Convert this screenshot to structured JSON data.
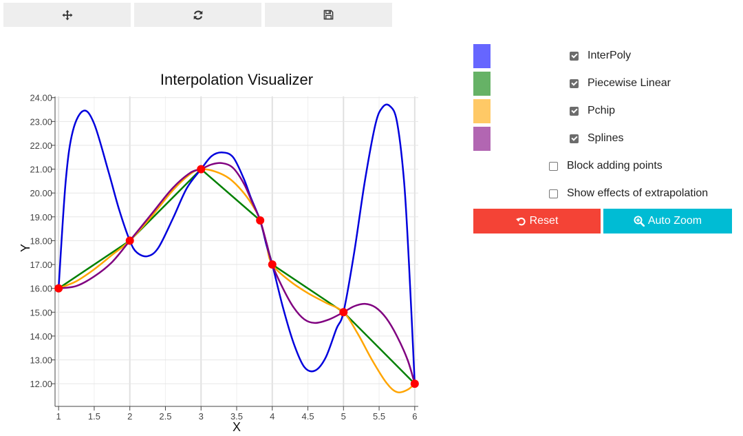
{
  "toolbar": {
    "buttons": [
      {
        "icon": "move-icon"
      },
      {
        "icon": "refresh-icon"
      },
      {
        "icon": "save-icon"
      }
    ]
  },
  "chart_data": {
    "type": "line",
    "title": "Interpolation Visualizer",
    "xlabel": "X",
    "ylabel": "Y",
    "xlim": [
      0.95,
      6.05
    ],
    "ylim": [
      11.05,
      24.05
    ],
    "x_ticks": [
      "1",
      "1.5",
      "2",
      "2.5",
      "3",
      "3.5",
      "4",
      "4.5",
      "5",
      "5.5",
      "6"
    ],
    "y_ticks": [
      "12.00",
      "13.00",
      "14.00",
      "15.00",
      "16.00",
      "17.00",
      "18.00",
      "19.00",
      "20.00",
      "21.00",
      "22.00",
      "23.00",
      "24.00"
    ],
    "grid": true,
    "points": [
      [
        1,
        16
      ],
      [
        2,
        18
      ],
      [
        3,
        21
      ],
      [
        3.83,
        18.85
      ],
      [
        4,
        17
      ],
      [
        5,
        15
      ],
      [
        6,
        12
      ]
    ],
    "series": [
      {
        "key": "interpoly",
        "color": "#0000dd",
        "x": [
          1,
          1.1,
          1.2,
          1.35,
          1.5,
          1.7,
          1.85,
          2,
          2.1,
          2.25,
          2.4,
          2.6,
          2.8,
          3,
          3.15,
          3.3,
          3.45,
          3.6,
          3.7,
          3.83,
          3.92,
          4,
          4.15,
          4.3,
          4.45,
          4.6,
          4.75,
          4.9,
          5,
          5.15,
          5.3,
          5.45,
          5.55,
          5.65,
          5.75,
          5.85,
          5.92,
          6
        ],
        "y": [
          16,
          20.5,
          22.6,
          23.45,
          22.9,
          20.9,
          19.3,
          18,
          17.5,
          17.35,
          17.7,
          18.9,
          20.2,
          21,
          21.55,
          21.7,
          21.5,
          20.6,
          19.8,
          18.85,
          17.8,
          17,
          15.2,
          13.7,
          12.7,
          12.55,
          13.1,
          14.3,
          15,
          17.5,
          20.5,
          22.9,
          23.6,
          23.65,
          23,
          20.5,
          17,
          12
        ]
      },
      {
        "key": "linear",
        "color": "#008000",
        "x": [
          1,
          2,
          3,
          3.83,
          4,
          5,
          6
        ],
        "y": [
          16,
          18,
          21,
          18.85,
          17,
          15,
          12
        ]
      },
      {
        "key": "pchip",
        "color": "#ffa500",
        "x": [
          1,
          1.25,
          1.5,
          1.75,
          2,
          2.3,
          2.6,
          2.85,
          3,
          3.2,
          3.4,
          3.6,
          3.75,
          3.83,
          3.92,
          4,
          4.25,
          4.5,
          4.75,
          5,
          5.2,
          5.4,
          5.6,
          5.75,
          5.9,
          6
        ],
        "y": [
          16,
          16.3,
          16.8,
          17.4,
          18,
          19,
          20.1,
          20.8,
          21,
          20.9,
          20.6,
          20,
          19.35,
          18.85,
          17.8,
          17,
          16.3,
          15.8,
          15.4,
          15,
          14.1,
          13,
          12.05,
          11.65,
          11.75,
          12
        ]
      },
      {
        "key": "splines",
        "color": "#800080",
        "x": [
          1,
          1.25,
          1.5,
          1.75,
          2,
          2.3,
          2.6,
          2.85,
          3,
          3.15,
          3.3,
          3.45,
          3.6,
          3.72,
          3.83,
          3.92,
          4,
          4.15,
          4.3,
          4.45,
          4.6,
          4.8,
          5,
          5.15,
          5.3,
          5.45,
          5.6,
          5.75,
          5.9,
          6
        ],
        "y": [
          16,
          16.1,
          16.5,
          17.1,
          18,
          19.1,
          20.2,
          20.85,
          21,
          21.2,
          21.25,
          21.05,
          20.4,
          19.6,
          18.85,
          17.9,
          17,
          16,
          15.2,
          14.7,
          14.55,
          14.7,
          15,
          15.25,
          15.35,
          15.2,
          14.75,
          14,
          13,
          12
        ]
      }
    ]
  },
  "legend": {
    "items": [
      {
        "key": "interpoly",
        "label": "InterPoly",
        "color": "#6666ff",
        "checked": true
      },
      {
        "key": "linear",
        "label": "Piecewise Linear",
        "color": "#66b266",
        "checked": true
      },
      {
        "key": "pchip",
        "label": "Pchip",
        "color": "#ffc966",
        "checked": true
      },
      {
        "key": "splines",
        "label": "Splines",
        "color": "#b266b2",
        "checked": true
      }
    ]
  },
  "options": {
    "block_adding": {
      "label": "Block adding points",
      "checked": false
    },
    "extrapolation": {
      "label": "Show effects of extrapolation",
      "checked": false
    }
  },
  "buttons": {
    "reset_label": "Reset",
    "zoom_label": "Auto Zoom"
  }
}
